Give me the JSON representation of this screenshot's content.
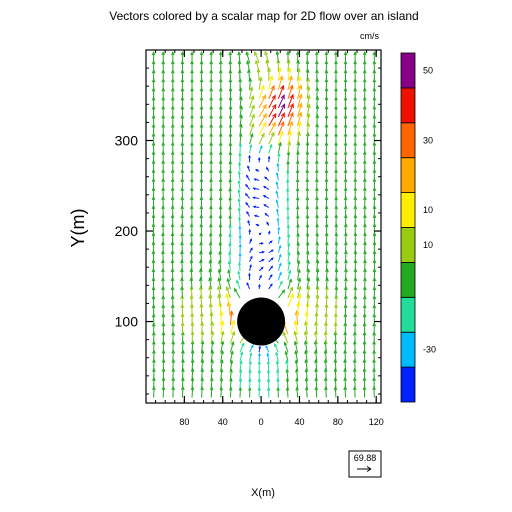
{
  "chart_data": {
    "type": "vector-field",
    "title": "Vectors colored by a scalar map for 2D flow over an island",
    "units": "cm/s",
    "xlabel": "X(m)",
    "ylabel": "Y(m)",
    "xlim": [
      -120,
      125
    ],
    "ylim": [
      10,
      400
    ],
    "x_tick_values": [
      -80,
      -40,
      0,
      40,
      80,
      120
    ],
    "x_tick_labels": [
      "80",
      "40",
      "0",
      "40",
      "80",
      "120"
    ],
    "y_tick_values": [
      100,
      200,
      300
    ],
    "y_tick_labels": [
      "100",
      "200",
      "300"
    ],
    "grid": false,
    "island": {
      "center_x": 0,
      "center_y": 100,
      "radius": 25,
      "color": "#000000"
    },
    "reference_vector": {
      "label": "69.88"
    },
    "colorbar": {
      "placement": "right",
      "colors": [
        "#0022ff",
        "#00bbff",
        "#22dd99",
        "#22aa22",
        "#99cc11",
        "#ffee00",
        "#ffaa00",
        "#ff6600",
        "#ee1100",
        "#880088"
      ],
      "labels": [
        "-30",
        "10",
        "10",
        "30",
        "50"
      ],
      "label_bins": [
        1,
        4,
        5,
        7,
        9
      ]
    }
  }
}
